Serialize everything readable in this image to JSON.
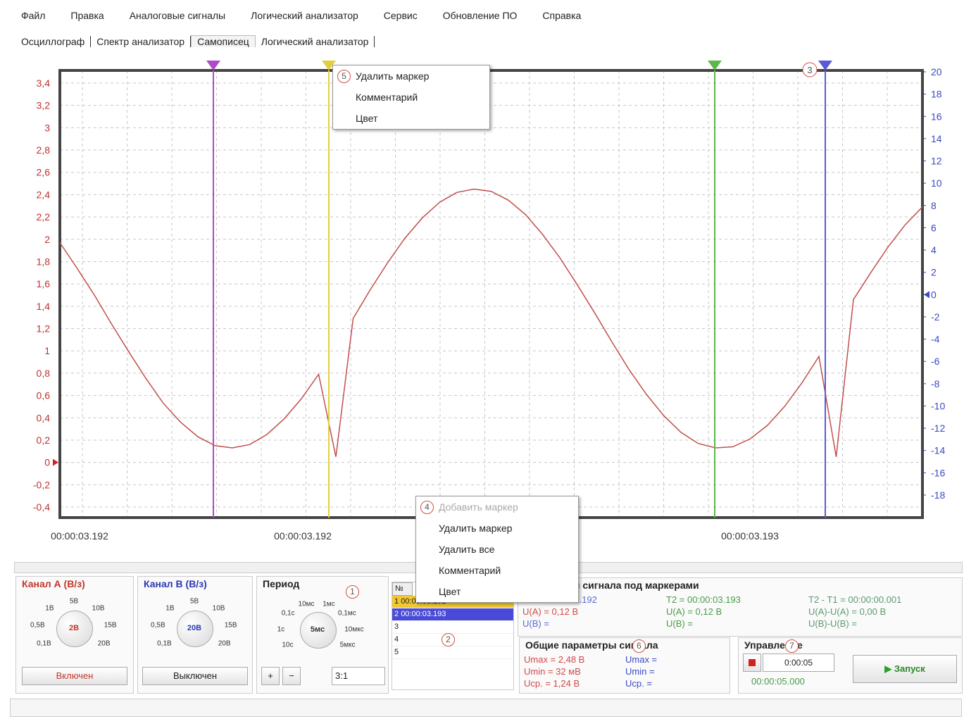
{
  "menu": [
    "Файл",
    "Правка",
    "Аналоговые сигналы",
    "Логический анализатор",
    "Сервис",
    "Обновление ПО",
    "Справка"
  ],
  "tabs": [
    "Осциллограф",
    "Спектр анализатор",
    "Самописец",
    "Логический анализатор"
  ],
  "plot": {
    "ylim": [
      -0.4,
      3.4
    ],
    "yticks": [
      {
        "value": -0.4,
        "label": "-0,4"
      },
      {
        "value": -0.2,
        "label": "-0,2"
      },
      0,
      {
        "value": 0.2,
        "label": "0,2"
      },
      {
        "value": 0.4,
        "label": "0,4"
      },
      {
        "value": 0.6,
        "label": "0,6"
      },
      {
        "value": 0.8,
        "label": "0,8"
      },
      1,
      {
        "value": 1.2,
        "label": "1,2"
      },
      {
        "value": 1.4,
        "label": "1,4"
      },
      {
        "value": 1.6,
        "label": "1,6"
      },
      {
        "value": 1.8,
        "label": "1,8"
      },
      2,
      {
        "value": 2.2,
        "label": "2,2"
      },
      {
        "value": 2.4,
        "label": "2,4"
      },
      {
        "value": 2.6,
        "label": "2,6"
      },
      {
        "value": 2.8,
        "label": "2,8"
      },
      3,
      {
        "value": 3.2,
        "label": "3,2"
      },
      {
        "value": 3.4,
        "label": "3,4"
      }
    ],
    "y2lim": [
      -18,
      20
    ],
    "y2ticks": [
      -18,
      -16,
      -14,
      -12,
      -10,
      -8,
      -6,
      -4,
      -2,
      0,
      2,
      4,
      6,
      8,
      10,
      12,
      14,
      16,
      18,
      20
    ],
    "time_labels": [
      "00:00:03.192",
      "00:00:03.192",
      "00:00:03.193"
    ],
    "trace": {
      "color": "#c0504d",
      "values": [
        1.97,
        1.74,
        1.5,
        1.24,
        0.99,
        0.75,
        0.53,
        0.36,
        0.23,
        0.15,
        0.13,
        0.16,
        0.25,
        0.39,
        0.57,
        0.79,
        0.05,
        1.29,
        1.55,
        1.79,
        2.01,
        2.19,
        2.33,
        2.42,
        2.45,
        2.43,
        2.35,
        2.22,
        2.04,
        1.83,
        1.59,
        1.34,
        1.08,
        0.83,
        0.61,
        0.42,
        0.27,
        0.17,
        0.13,
        0.14,
        0.21,
        0.33,
        0.5,
        0.71,
        0.95,
        0.05,
        1.46,
        1.7,
        1.93,
        2.13,
        2.29
      ]
    },
    "markers": [
      {
        "color": "#b04ac8"
      },
      {
        "color": "#e0d040"
      },
      {
        "color": "#5cb84a"
      },
      {
        "color": "#5a5ad8"
      }
    ],
    "marker_badge": "3"
  },
  "marker_menu": {
    "badge": "5",
    "items": [
      "Удалить маркер",
      "Комментарий",
      "Цвет"
    ]
  },
  "plot_menu": {
    "badge": "4",
    "items": [
      "Добавить маркер",
      "Удалить маркер",
      "Удалить все",
      "Комментарий",
      "Цвет"
    ]
  },
  "panels": {
    "channel_a": {
      "title": "Канал А (В/з)",
      "dial": [
        "0,1В",
        "0,5В",
        "1В",
        "5В",
        "10В",
        "15В",
        "20В"
      ],
      "center": "2В",
      "button": "Включен"
    },
    "channel_b": {
      "title": "Канал B (В/з)",
      "dial": [
        "0,1В",
        "0,5В",
        "1В",
        "5В",
        "10В",
        "15В",
        "20В"
      ],
      "center": "20В",
      "button": "Выключен"
    },
    "period": {
      "title": "Период",
      "badge": "1",
      "dial": [
        "10с",
        "1с",
        "0,1с",
        "10мс",
        "1мс",
        "0,1мс",
        "10мкс",
        "5мкс"
      ],
      "center": "5мс",
      "zoom_in": "+",
      "zoom_out": "−",
      "ratio": "3:1"
    },
    "marker_list": {
      "header": "№",
      "badge": "2",
      "rows": [
        {
          "n": "1",
          "time": "00:00:03.192"
        },
        {
          "n": "2",
          "time": "00:00:03.193"
        },
        {
          "n": "3"
        },
        {
          "n": "4"
        },
        {
          "n": "5"
        }
      ]
    },
    "marker_params": {
      "title": "Параметры сигнала под маркерами",
      "columns": [
        [
          "T1 = 00:00:03.192",
          "U(A) = 0,12 В",
          "U(B) ="
        ],
        [
          "T2 = 00:00:03.193",
          "U(A) = 0,12 В",
          "U(B) ="
        ],
        [
          "T2 - T1 = 00:00:00.001",
          "U(A)-U(A) = 0,00 В",
          "U(B)-U(B) ="
        ]
      ]
    },
    "general_params": {
      "title": "Общие параметры сигнала",
      "badge": "6",
      "channel_a": [
        "Umax = 2,48 В",
        "Umin = 32 мВ",
        "Ucp. = 1,24 В"
      ],
      "channel_b": [
        "Umax =",
        "Umin =",
        "Ucp. ="
      ]
    },
    "control": {
      "title": "Управление",
      "badge": "7",
      "duration": "0:00:05",
      "elapsed": "00:00:05.000",
      "start": "Запуск"
    }
  }
}
